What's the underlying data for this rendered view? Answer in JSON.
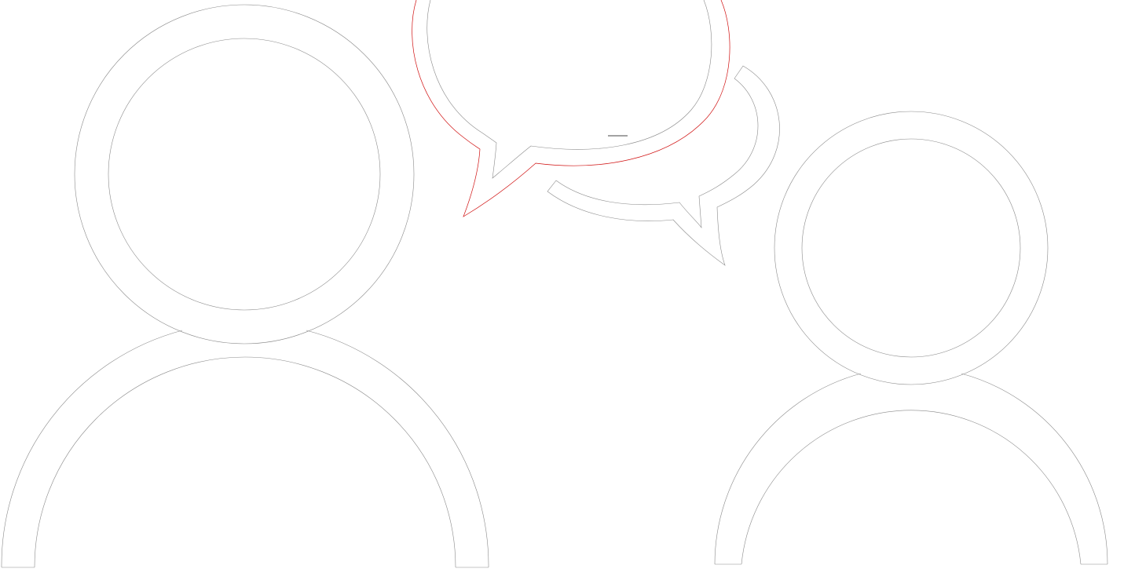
{
  "illustration": {
    "figures": [
      {
        "icon": "person-icon",
        "role": "left-person"
      },
      {
        "icon": "person-icon",
        "role": "right-person"
      }
    ],
    "speech_bubbles": [
      {
        "icon": "speech-bubble-icon",
        "role": "front-bubble",
        "accent_color": "#d01010"
      },
      {
        "icon": "speech-bubble-icon",
        "role": "back-bubble",
        "accent_color": "#8a8a8a"
      }
    ],
    "colors": {
      "background": "#ffffff",
      "outline": "#8a8a8a",
      "bubble_accent": "#d01010"
    }
  }
}
